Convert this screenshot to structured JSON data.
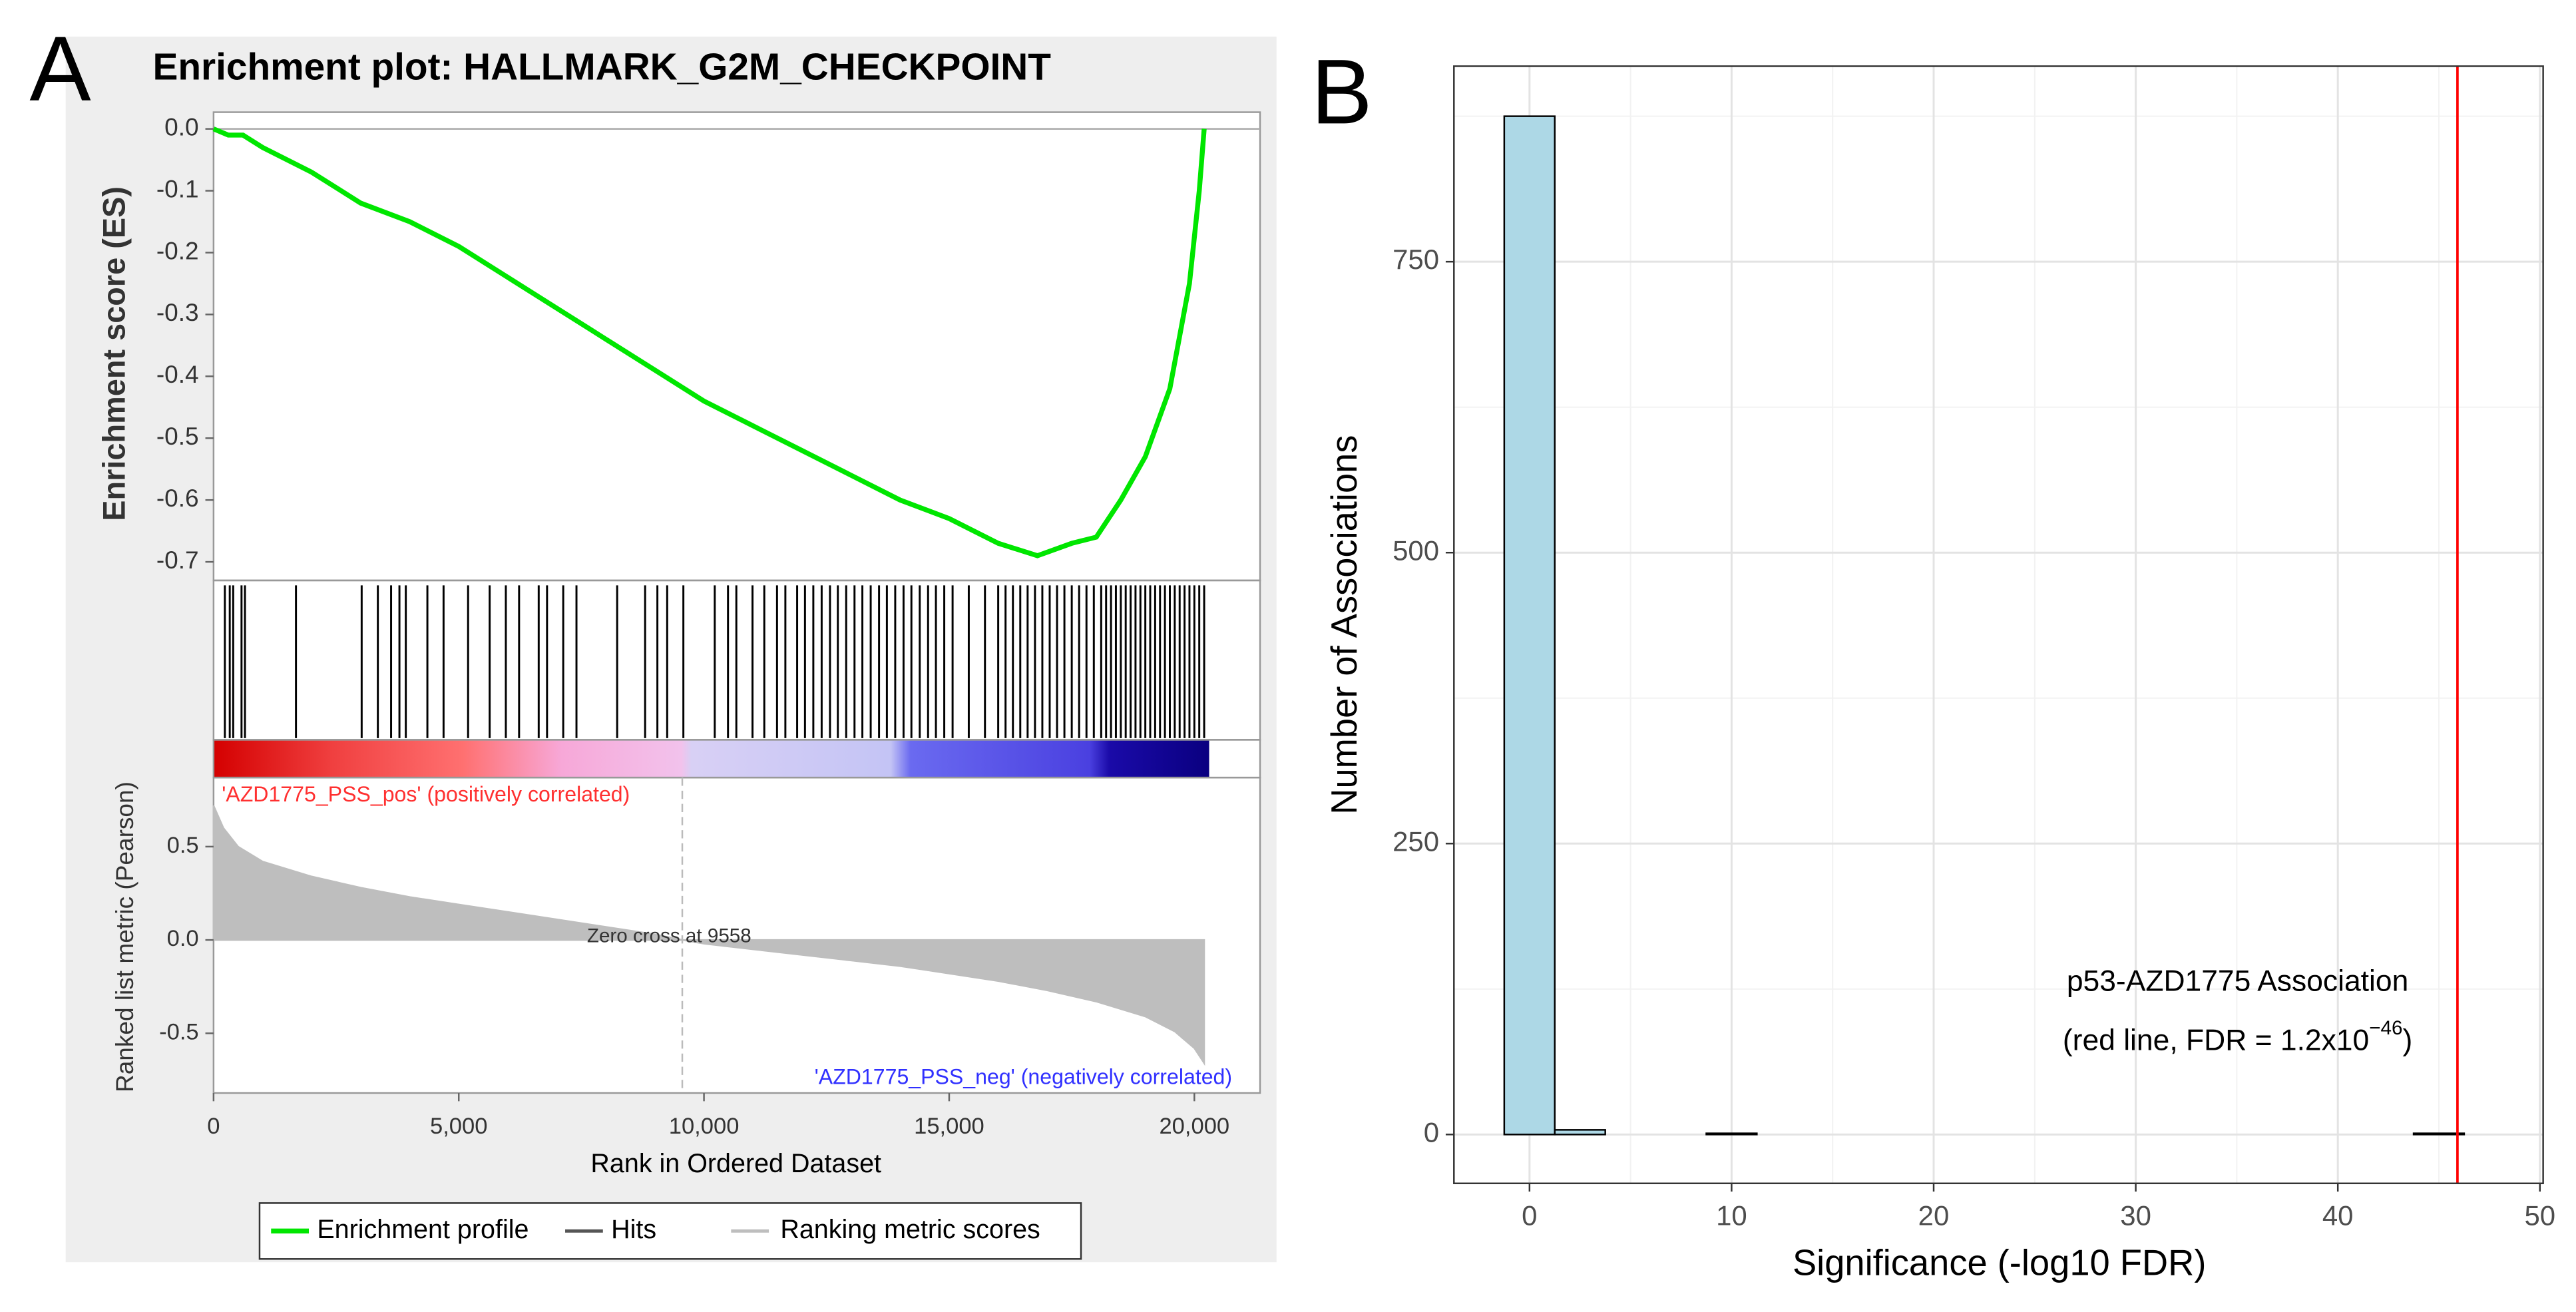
{
  "chart_data": [
    {
      "type": "gsea",
      "panel": "A",
      "title": "Enrichment plot: HALLMARK_G2M_CHECKPOINT",
      "xlabel": "Rank in Ordered Dataset",
      "ylabel": "Enrichment score (ES)",
      "xlim": [
        0,
        21340
      ],
      "xticks": [
        0,
        {
          "value": 5000,
          "label": "5,000"
        },
        {
          "value": 10000,
          "label": "10,000"
        },
        {
          "value": 15000,
          "label": "15,000"
        },
        {
          "value": 20000,
          "label": "20,000"
        }
      ],
      "ylim": [
        -0.73,
        0.027
      ],
      "yticks": [
        {
          "value": 0,
          "label": "0.0"
        },
        -0.1,
        -0.2,
        -0.3,
        -0.4,
        -0.5,
        -0.6,
        -0.7
      ],
      "series": [
        {
          "name": "Enrichment profile",
          "color": "#00e600",
          "x": [
            0,
            300,
            600,
            1000,
            2000,
            3000,
            4000,
            5000,
            6000,
            7000,
            8000,
            9000,
            10000,
            11000,
            12000,
            13000,
            14000,
            15000,
            16000,
            16800,
            17500,
            18000,
            18500,
            19000,
            19500,
            19900,
            20100,
            20200
          ],
          "values": [
            0,
            -0.01,
            -0.01,
            -0.03,
            -0.07,
            -0.12,
            -0.15,
            -0.19,
            -0.24,
            -0.29,
            -0.34,
            -0.39,
            -0.44,
            -0.48,
            -0.52,
            -0.56,
            -0.6,
            -0.63,
            -0.67,
            -0.69,
            -0.67,
            -0.66,
            -0.6,
            -0.53,
            -0.42,
            -0.25,
            -0.1,
            0
          ]
        }
      ],
      "hits": {
        "name": "Hits",
        "color": "#000000",
        "x": [
          230,
          330,
          400,
          570,
          640,
          1680,
          3020,
          3350,
          3620,
          3790,
          3920,
          4360,
          4690,
          5190,
          5630,
          5960,
          6230,
          6630,
          6800,
          7130,
          7400,
          8230,
          8800,
          9050,
          9250,
          9580,
          10220,
          10490,
          10660,
          10990,
          11230,
          11490,
          11660,
          11900,
          12060,
          12230,
          12400,
          12570,
          12730,
          12900,
          13070,
          13230,
          13400,
          13570,
          13730,
          13900,
          14070,
          14230,
          14400,
          14570,
          14730,
          14900,
          15070,
          15400,
          15730,
          16000,
          16150,
          16300,
          16450,
          16600,
          16750,
          16900,
          17050,
          17200,
          17350,
          17500,
          17650,
          17800,
          17950,
          18100,
          18200,
          18300,
          18400,
          18500,
          18600,
          18700,
          18800,
          18900,
          19000,
          19100,
          19200,
          19300,
          19400,
          19500,
          19600,
          19700,
          19800,
          19900,
          20000,
          20100,
          20200
        ]
      },
      "metric": {
        "name": "Ranking metric scores",
        "color": "#bebebe",
        "ylabel": "Ranked list metric (Pearson)",
        "ylim": [
          -0.82,
          0.87
        ],
        "yticks": [
          0.5,
          {
            "value": 0,
            "label": "0.0"
          },
          -0.5
        ],
        "x": [
          0,
          200,
          500,
          1000,
          2000,
          3000,
          4000,
          5000,
          6000,
          7000,
          8000,
          9000,
          9558,
          10000,
          11000,
          12000,
          13000,
          14000,
          15000,
          16000,
          17000,
          18000,
          19000,
          19600,
          20000,
          20200
        ],
        "values": [
          0.72,
          0.6,
          0.5,
          0.42,
          0.34,
          0.28,
          0.23,
          0.19,
          0.15,
          0.11,
          0.07,
          0.03,
          0,
          -0.02,
          -0.05,
          -0.08,
          -0.11,
          -0.14,
          -0.18,
          -0.22,
          -0.27,
          -0.33,
          -0.41,
          -0.49,
          -0.58,
          -0.66
        ]
      },
      "zero_cross": {
        "text": "Zero cross at 9558",
        "x": 9558
      },
      "pos_label": "'AZD1775_PSS_pos' (positively correlated)",
      "neg_label": "'AZD1775_PSS_neg' (negatively correlated)"
    },
    {
      "type": "histogram",
      "panel": "B",
      "xlabel": "Significance (-log10 FDR)",
      "ylabel": "Number of Associations",
      "bins": [
        -1.25,
        1.25,
        3.75,
        6.25,
        8.75,
        11.25,
        13.75,
        16.25,
        18.75,
        21.25,
        23.75,
        26.25,
        28.75,
        31.25,
        33.75,
        36.25,
        38.75,
        41.25,
        43.75,
        46.25
      ],
      "values": [
        875,
        4,
        0,
        0,
        1,
        0,
        0,
        0,
        0,
        0,
        0,
        0,
        0,
        0,
        0,
        0,
        0,
        0,
        1
      ],
      "color": "#add8e6",
      "xlim": [
        -3.74,
        50.16
      ],
      "xticks": [
        0,
        10,
        20,
        30,
        40,
        50
      ],
      "ylim": [
        -42,
        918
      ],
      "yticks": [
        0,
        250,
        500,
        750
      ],
      "minor_xgrid": [
        5,
        15,
        25,
        35,
        45
      ],
      "minor_ygrid": [
        125,
        375,
        625,
        875
      ],
      "grid": true,
      "vline": {
        "x": 45.92,
        "color": "#ff0000"
      },
      "annotation": {
        "line1": "p53-AZD1775 Association",
        "line2": "(red line, FDR = 1.2x10",
        "exponent": "−46",
        "suffix": ")"
      }
    }
  ]
}
